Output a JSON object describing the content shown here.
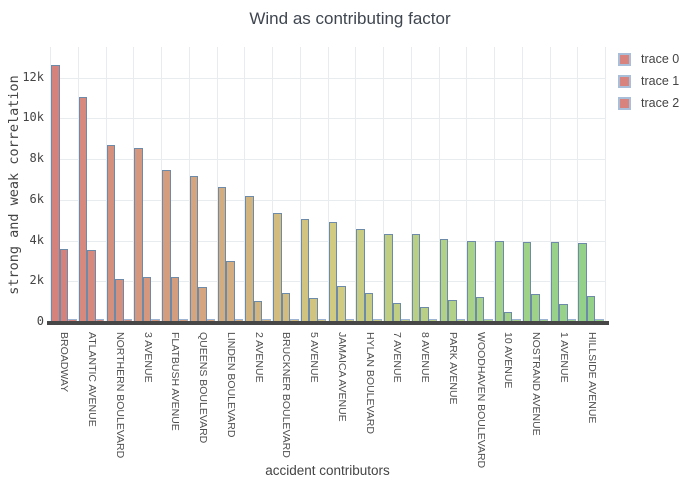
{
  "title": "Wind as contributing factor",
  "legend": {
    "items": [
      {
        "label": "trace 0"
      },
      {
        "label": "trace 1"
      },
      {
        "label": "trace 2"
      }
    ],
    "swatch_fill": "#d8837d",
    "swatch_border": "#a9bfd9"
  },
  "chart_data": {
    "type": "bar",
    "title": "Wind as contributing factor",
    "xlabel": "accident contributors",
    "ylabel": "strong and weak correlation",
    "categories": [
      "BROADWAY",
      "ATLANTIC AVENUE",
      "NORTHERN BOULEVARD",
      "3 AVENUE",
      "FLATBUSH AVENUE",
      "QUEENS BOULEVARD",
      "LINDEN BOULEVARD",
      "2 AVENUE",
      "BRUCKNER BOULEVARD",
      "5 AVENUE",
      "JAMAICA AVENUE",
      "HYLAN BOULEVARD",
      "7 AVENUE",
      "8 AVENUE",
      "PARK AVENUE",
      "WOODHAVEN BOULEVARD",
      "10 AVENUE",
      "NOSTRAND AVENUE",
      "1 AVENUE",
      "HILLSIDE AVENUE"
    ],
    "series": [
      {
        "name": "trace 0",
        "values": [
          12600,
          11050,
          8700,
          8520,
          7450,
          7150,
          6650,
          6200,
          5350,
          5050,
          4930,
          4550,
          4340,
          4300,
          4060,
          3980,
          3970,
          3940,
          3920,
          3890
        ]
      },
      {
        "name": "trace 1",
        "values": [
          3570,
          3520,
          2130,
          2200,
          2200,
          1700,
          2980,
          1050,
          1420,
          1170,
          1750,
          1440,
          920,
          750,
          1080,
          1250,
          500,
          1360,
          880,
          1290
        ]
      },
      {
        "name": "trace 2",
        "values": [
          80,
          80,
          80,
          80,
          80,
          80,
          80,
          80,
          80,
          80,
          80,
          80,
          80,
          80,
          80,
          80,
          80,
          80,
          80,
          80
        ]
      }
    ],
    "ylim": [
      0,
      13500
    ],
    "yticks": [
      {
        "label": "0",
        "value": 0
      },
      {
        "label": "2k",
        "value": 2000
      },
      {
        "label": "4k",
        "value": 4000
      },
      {
        "label": "6k",
        "value": 6000
      },
      {
        "label": "8k",
        "value": 8000
      },
      {
        "label": "10k",
        "value": 10000
      },
      {
        "label": "12k",
        "value": 12000
      }
    ],
    "grid": true,
    "legend_position": "right",
    "bar_color_stops": [
      [
        0,
        "#d6827c"
      ],
      [
        5,
        "#d4a57e"
      ],
      [
        10,
        "#d0cb81"
      ],
      [
        15,
        "#a8d288"
      ],
      [
        19,
        "#93d189"
      ]
    ],
    "bar_border_color": "#6e8aa9",
    "axis_line_color": "#474747",
    "grid_color": "#e8ecef",
    "text_color": "#444444"
  }
}
